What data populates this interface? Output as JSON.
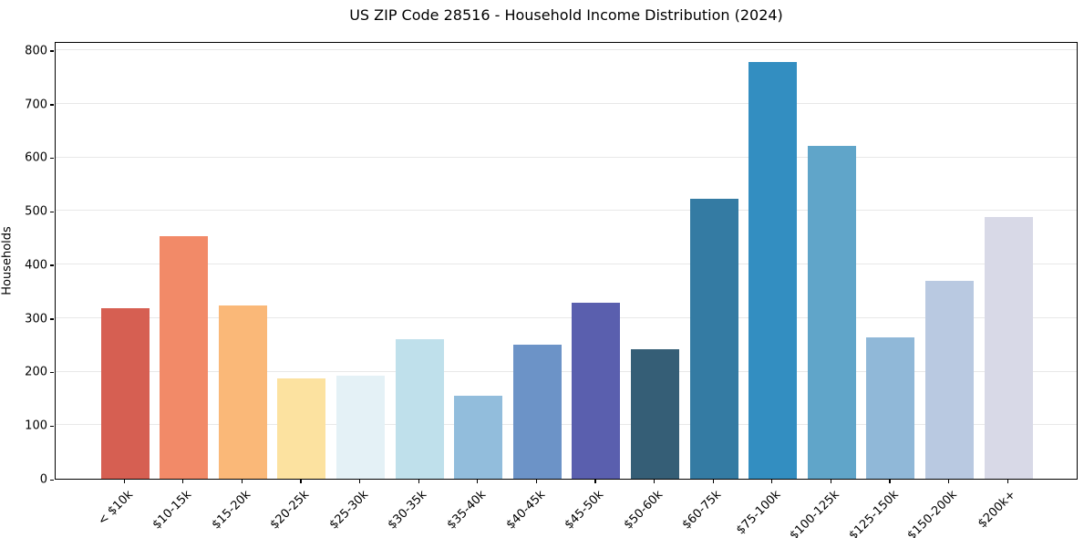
{
  "chart_data": {
    "type": "bar",
    "title": "US ZIP Code 28516 - Household Income Distribution (2024)",
    "xlabel": "",
    "ylabel": "Households",
    "categories": [
      "< $10k",
      "$10-15k",
      "$15-20k",
      "$20-25k",
      "$25-30k",
      "$30-35k",
      "$35-40k",
      "$40-45k",
      "$45-50k",
      "$50-60k",
      "$60-75k",
      "$75-100k",
      "$100-125k",
      "$125-150k",
      "$150-200k",
      "$200k+"
    ],
    "values": [
      318,
      453,
      323,
      187,
      193,
      261,
      155,
      250,
      328,
      242,
      523,
      778,
      622,
      264,
      369,
      488
    ],
    "bar_colors": [
      "#d65f52",
      "#f28a68",
      "#fab878",
      "#fce2a0",
      "#e4f1f6",
      "#bfe0eb",
      "#92bddc",
      "#6c93c7",
      "#5a5fae",
      "#355e76",
      "#347ba3",
      "#338ec1",
      "#60a5c9",
      "#90b8d8",
      "#b9c9e1",
      "#d8d9e7"
    ],
    "ylim": [
      0,
      817
    ],
    "yticks": [
      0,
      100,
      200,
      300,
      400,
      500,
      600,
      700,
      800
    ],
    "grid": "horizontal-light",
    "grid_color": "#e8e8e8",
    "spine_color": "#000000",
    "x_tick_rotation_deg": 45,
    "legend": "none"
  }
}
